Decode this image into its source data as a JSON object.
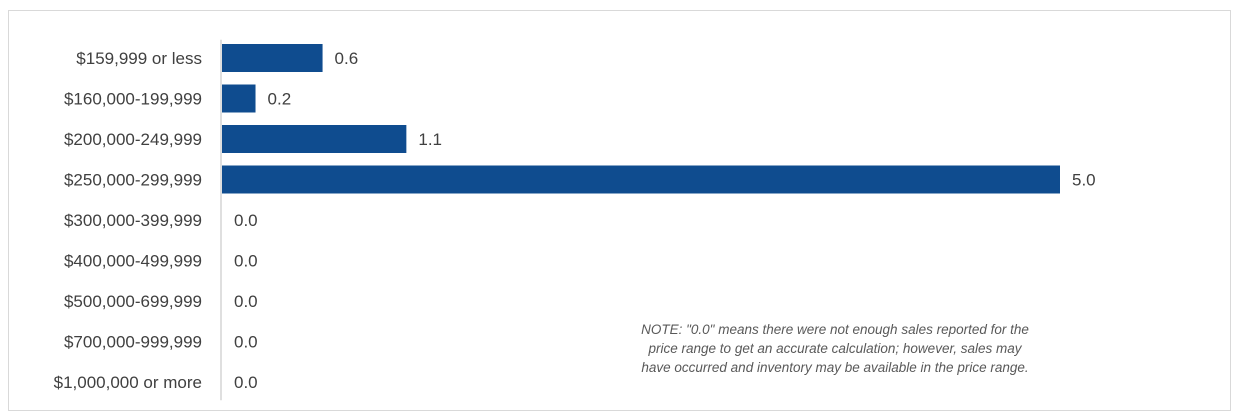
{
  "chart_data": {
    "type": "bar",
    "orientation": "horizontal",
    "categories": [
      "$159,999 or less",
      "$160,000-199,999",
      "$200,000-249,999",
      "$250,000-299,999",
      "$300,000-399,999",
      "$400,000-499,999",
      "$500,000-699,999",
      "$700,000-999,999",
      "$1,000,000 or more"
    ],
    "values": [
      0.6,
      0.2,
      1.1,
      5.0,
      0.0,
      0.0,
      0.0,
      0.0,
      0.0
    ],
    "value_labels": [
      "0.6",
      "0.2",
      "1.1",
      "5.0",
      "0.0",
      "0.0",
      "0.0",
      "0.0",
      "0.0"
    ],
    "xlim": [
      0,
      5.0
    ],
    "grid": false,
    "bar_color": "#0f4c8f",
    "axis_color": "#bfbfbf"
  },
  "note": "NOTE: \"0.0\" means there were not enough sales reported for the price range to get an accurate calculation;  however, sales may have occurred and inventory may be available in the price range."
}
